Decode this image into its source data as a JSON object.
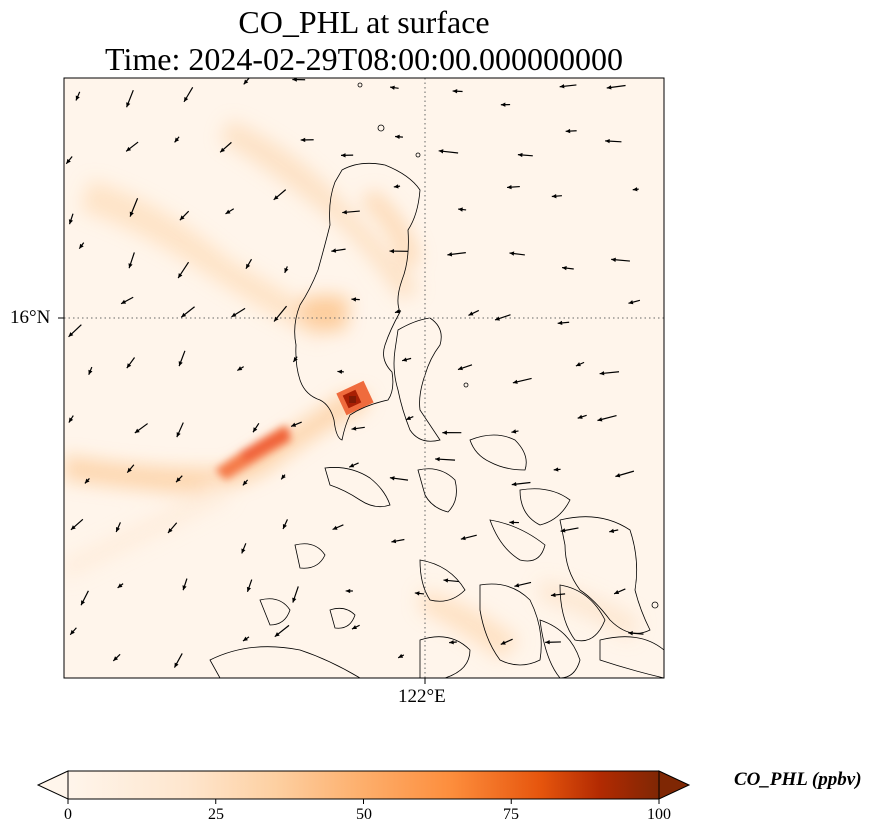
{
  "title": {
    "line1": "CO_PHL at surface",
    "line2": "Time: 2024-02-29T08:00:00.000000000"
  },
  "map": {
    "lat_label": "16°N",
    "lon_label": "122°E",
    "gridlines": "dotted",
    "coastlines": true,
    "wind_vectors": true
  },
  "colorbar": {
    "label": "CO_PHL (ppbv)",
    "ticks": [
      "0",
      "25",
      "50",
      "75",
      "100"
    ],
    "min": 0,
    "max": 100,
    "extend": "both",
    "colormap": "Oranges",
    "colors": [
      "#fff5eb",
      "#fdd49e",
      "#fdae6b",
      "#f16913",
      "#d94801",
      "#a63603",
      "#7f2704"
    ]
  }
}
